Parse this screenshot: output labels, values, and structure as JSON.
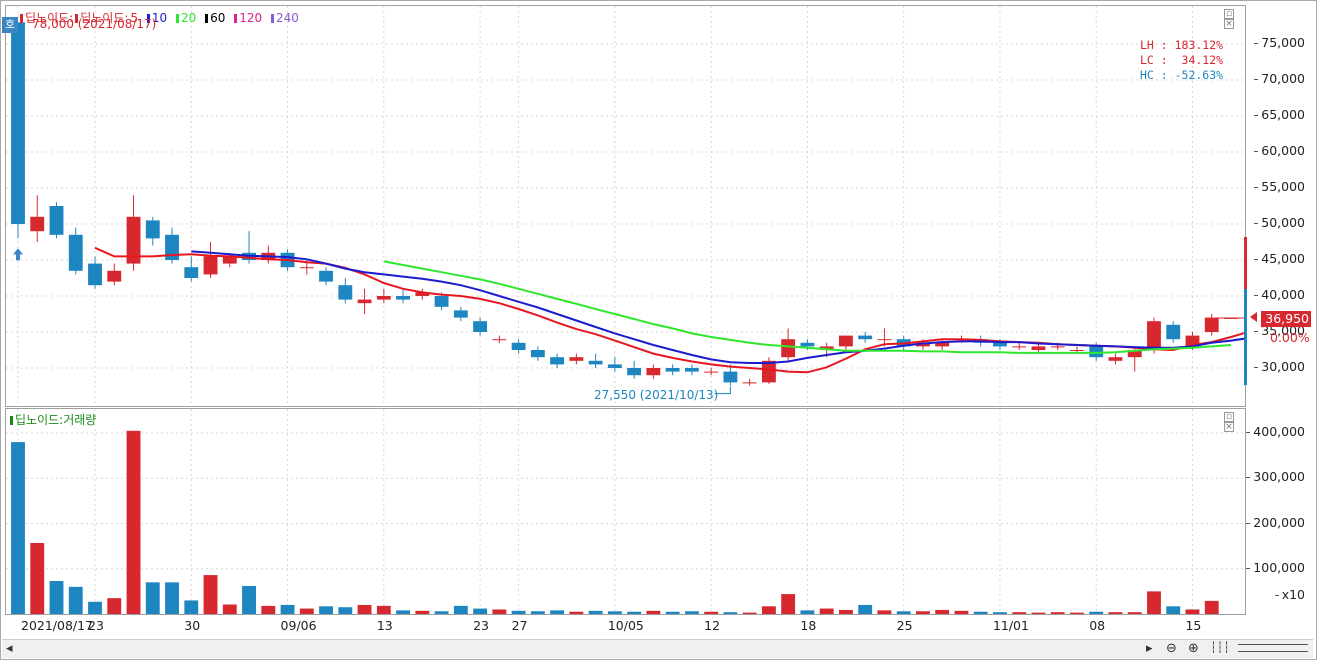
{
  "colors": {
    "up": "#d7282f",
    "down": "#1d86c0",
    "ma5": "#e8171f",
    "ma10": "#1c1ccf",
    "ma20": "#2ee82e",
    "ma60": "#000000",
    "ma120": "#e0208e",
    "ma240": "#8a5bd6"
  },
  "price_pane": {
    "legend": {
      "name": "딥노이드",
      "sep": ":",
      "prefix": "딥노이드:",
      "ma": [
        "5",
        "10",
        "20",
        "60",
        "120",
        "240"
      ]
    },
    "high_note": "78,000 (2021/08/17)",
    "low_note": "27,550 (2021/10/13)",
    "stats": {
      "lh": "LH : 183.12%",
      "lc": "LC :  34.12%",
      "hc": "HC : -52.63%"
    },
    "ho_badge": "호",
    "current_price": "36,950",
    "change": "0.00%"
  },
  "volume_pane": {
    "legend": "딥노이드:거래량",
    "unit": "x10"
  },
  "price_axis": [
    "75,000",
    "70,000",
    "65,000",
    "60,000",
    "55,000",
    "50,000",
    "45,000",
    "40,000",
    "35,000",
    "30,000"
  ],
  "volume_axis": [
    "400,000",
    "300,000",
    "200,000",
    "100,000"
  ],
  "x_labels": [
    "2021/08/17",
    "23",
    "30",
    "09/06",
    "13",
    "23",
    "27",
    "10/05",
    "12",
    "18",
    "25",
    "11/01",
    "08",
    "15"
  ],
  "chart_data": {
    "type": "candlestick",
    "price_range": [
      25000,
      80000
    ],
    "volume_range": [
      0,
      420000
    ],
    "candles": [
      {
        "o": 78000,
        "h": 78000,
        "l": 48000,
        "c": 50000,
        "v": 380000
      },
      {
        "o": 49000,
        "h": 54000,
        "l": 47500,
        "c": 51000,
        "v": 157000
      },
      {
        "o": 52500,
        "h": 53000,
        "l": 48000,
        "c": 48500,
        "v": 73000
      },
      {
        "o": 48500,
        "h": 49500,
        "l": 43000,
        "c": 43500,
        "v": 60000
      },
      {
        "o": 44500,
        "h": 45500,
        "l": 41000,
        "c": 41500,
        "v": 27000
      },
      {
        "o": 42000,
        "h": 44500,
        "l": 41500,
        "c": 43500,
        "v": 35000
      },
      {
        "o": 44500,
        "h": 54000,
        "l": 43500,
        "c": 51000,
        "v": 405000
      },
      {
        "o": 50500,
        "h": 51000,
        "l": 47000,
        "c": 48000,
        "v": 70000
      },
      {
        "o": 48500,
        "h": 49500,
        "l": 44500,
        "c": 45000,
        "v": 70000
      },
      {
        "o": 44000,
        "h": 45500,
        "l": 42000,
        "c": 42500,
        "v": 30000
      },
      {
        "o": 43000,
        "h": 47500,
        "l": 42500,
        "c": 45500,
        "v": 86000
      },
      {
        "o": 44500,
        "h": 46000,
        "l": 44000,
        "c": 45500,
        "v": 21000
      },
      {
        "o": 46000,
        "h": 49000,
        "l": 44500,
        "c": 45000,
        "v": 62000
      },
      {
        "o": 45000,
        "h": 47000,
        "l": 44500,
        "c": 46000,
        "v": 18000
      },
      {
        "o": 46000,
        "h": 46500,
        "l": 43500,
        "c": 44000,
        "v": 20000
      },
      {
        "o": 44000,
        "h": 45000,
        "l": 43000,
        "c": 44000,
        "v": 12000
      },
      {
        "o": 43500,
        "h": 44000,
        "l": 41500,
        "c": 42000,
        "v": 17000
      },
      {
        "o": 41500,
        "h": 42500,
        "l": 39000,
        "c": 39500,
        "v": 15000
      },
      {
        "o": 39000,
        "h": 41000,
        "l": 37500,
        "c": 39500,
        "v": 20000
      },
      {
        "o": 39500,
        "h": 41000,
        "l": 39000,
        "c": 40000,
        "v": 18000
      },
      {
        "o": 40000,
        "h": 41000,
        "l": 39000,
        "c": 39500,
        "v": 8000
      },
      {
        "o": 40000,
        "h": 41000,
        "l": 39500,
        "c": 40500,
        "v": 7000
      },
      {
        "o": 40000,
        "h": 40500,
        "l": 38000,
        "c": 38500,
        "v": 6000
      },
      {
        "o": 38000,
        "h": 38500,
        "l": 36500,
        "c": 37000,
        "v": 18000
      },
      {
        "o": 36500,
        "h": 37000,
        "l": 34500,
        "c": 35000,
        "v": 12000
      },
      {
        "o": 34000,
        "h": 34500,
        "l": 33500,
        "c": 34000,
        "v": 10000
      },
      {
        "o": 33500,
        "h": 34000,
        "l": 32000,
        "c": 32500,
        "v": 7000
      },
      {
        "o": 32500,
        "h": 33000,
        "l": 31000,
        "c": 31500,
        "v": 6000
      },
      {
        "o": 31500,
        "h": 32000,
        "l": 30000,
        "c": 30500,
        "v": 8000
      },
      {
        "o": 31000,
        "h": 32000,
        "l": 30500,
        "c": 31500,
        "v": 5000
      },
      {
        "o": 31000,
        "h": 32000,
        "l": 30000,
        "c": 30500,
        "v": 7000
      },
      {
        "o": 30500,
        "h": 31500,
        "l": 29500,
        "c": 30000,
        "v": 6000
      },
      {
        "o": 30000,
        "h": 31000,
        "l": 28500,
        "c": 29000,
        "v": 5000
      },
      {
        "o": 29000,
        "h": 30500,
        "l": 28500,
        "c": 30000,
        "v": 7000
      },
      {
        "o": 30000,
        "h": 30500,
        "l": 29000,
        "c": 29500,
        "v": 5000
      },
      {
        "o": 30000,
        "h": 30500,
        "l": 29000,
        "c": 29500,
        "v": 6000
      },
      {
        "o": 29500,
        "h": 30000,
        "l": 29000,
        "c": 29500,
        "v": 5000
      },
      {
        "o": 29500,
        "h": 30500,
        "l": 27550,
        "c": 28000,
        "v": 4000
      },
      {
        "o": 28000,
        "h": 28500,
        "l": 27550,
        "c": 28000,
        "v": 3000
      },
      {
        "o": 28000,
        "h": 31500,
        "l": 27800,
        "c": 31000,
        "v": 17000
      },
      {
        "o": 31500,
        "h": 35500,
        "l": 31000,
        "c": 34000,
        "v": 44000
      },
      {
        "o": 33500,
        "h": 34000,
        "l": 32500,
        "c": 33000,
        "v": 8000
      },
      {
        "o": 32500,
        "h": 33500,
        "l": 31500,
        "c": 33000,
        "v": 12000
      },
      {
        "o": 33000,
        "h": 34500,
        "l": 32500,
        "c": 34500,
        "v": 9000
      },
      {
        "o": 34500,
        "h": 35000,
        "l": 33500,
        "c": 34000,
        "v": 20000
      },
      {
        "o": 34000,
        "h": 35500,
        "l": 33000,
        "c": 34000,
        "v": 8000
      },
      {
        "o": 34000,
        "h": 34500,
        "l": 32500,
        "c": 33000,
        "v": 6000
      },
      {
        "o": 33000,
        "h": 34000,
        "l": 32500,
        "c": 33500,
        "v": 6000
      },
      {
        "o": 33000,
        "h": 34000,
        "l": 32500,
        "c": 33500,
        "v": 9000
      },
      {
        "o": 34000,
        "h": 34500,
        "l": 33500,
        "c": 34000,
        "v": 7000
      },
      {
        "o": 34000,
        "h": 34500,
        "l": 33000,
        "c": 33500,
        "v": 5000
      },
      {
        "o": 33500,
        "h": 34000,
        "l": 32500,
        "c": 33000,
        "v": 4000
      },
      {
        "o": 33000,
        "h": 33500,
        "l": 32500,
        "c": 33000,
        "v": 4000
      },
      {
        "o": 32500,
        "h": 33500,
        "l": 32000,
        "c": 33000,
        "v": 3000
      },
      {
        "o": 33000,
        "h": 33500,
        "l": 32500,
        "c": 33000,
        "v": 4000
      },
      {
        "o": 32500,
        "h": 33000,
        "l": 32000,
        "c": 32500,
        "v": 3000
      },
      {
        "o": 33000,
        "h": 33500,
        "l": 31000,
        "c": 31500,
        "v": 5000
      },
      {
        "o": 31000,
        "h": 32000,
        "l": 30500,
        "c": 31500,
        "v": 4000
      },
      {
        "o": 31500,
        "h": 33000,
        "l": 29500,
        "c": 32500,
        "v": 4000
      },
      {
        "o": 32500,
        "h": 37000,
        "l": 32000,
        "c": 36500,
        "v": 50000
      },
      {
        "o": 36000,
        "h": 36500,
        "l": 33500,
        "c": 34000,
        "v": 17000
      },
      {
        "o": 33000,
        "h": 35000,
        "l": 32500,
        "c": 34500,
        "v": 10000
      },
      {
        "o": 35000,
        "h": 37500,
        "l": 34500,
        "c": 37000,
        "v": 29000
      },
      {
        "o": 36950,
        "h": 36950,
        "l": 36950,
        "c": 36950,
        "v": 0
      }
    ],
    "ma": [
      {
        "period": 5,
        "color": "#e8171f",
        "start": 4,
        "points": [
          46700,
          45500,
          45500,
          45500,
          45700,
          45800,
          45600,
          45500,
          45300,
          45100,
          45000,
          44700,
          44500,
          43900,
          43000,
          41800,
          41000,
          40500,
          40200,
          40000,
          39600,
          39000,
          38200,
          37300,
          36300,
          35400,
          34700,
          33800,
          32900,
          32000,
          31400,
          30900,
          30500,
          30200,
          30000,
          29800,
          29500,
          29400,
          30100,
          31300,
          32600,
          33300,
          33400,
          33700,
          34000,
          34000,
          33900,
          33700,
          33600,
          33500,
          33300,
          33200,
          33100,
          33000,
          32800,
          32600,
          32500,
          33200,
          33600,
          34300,
          35100,
          35600
        ]
      },
      {
        "period": 10,
        "color": "#1c1ccf",
        "start": 9,
        "points": [
          46200,
          46000,
          45800,
          45600,
          45500,
          45400,
          45100,
          44500,
          43800,
          43300,
          43000,
          42700,
          42400,
          42000,
          41500,
          40800,
          40000,
          39200,
          38400,
          37500,
          36600,
          35700,
          34800,
          34000,
          33200,
          32500,
          31800,
          31200,
          30800,
          30700,
          30700,
          30900,
          31400,
          31800,
          32200,
          32400,
          32700,
          33100,
          33400,
          33600,
          33700,
          33700,
          33600,
          33600,
          33400,
          33300,
          33200,
          33100,
          33000,
          32900,
          32800,
          32800,
          33000,
          33500,
          33800,
          34200,
          34700,
          35000
        ]
      },
      {
        "period": 20,
        "color": "#2ee82e",
        "start": 19,
        "points": [
          44800,
          44300,
          43800,
          43300,
          42800,
          42300,
          41700,
          41000,
          40300,
          39600,
          38900,
          38200,
          37500,
          36800,
          36100,
          35500,
          34800,
          34300,
          33900,
          33500,
          33200,
          33000,
          32800,
          32600,
          32400,
          32400,
          32400,
          32400,
          32300,
          32300,
          32200,
          32200,
          32200,
          32100,
          32100,
          32100,
          32100,
          32100,
          32200,
          32400,
          32600,
          32700,
          32800,
          33000,
          33200
        ]
      }
    ]
  }
}
